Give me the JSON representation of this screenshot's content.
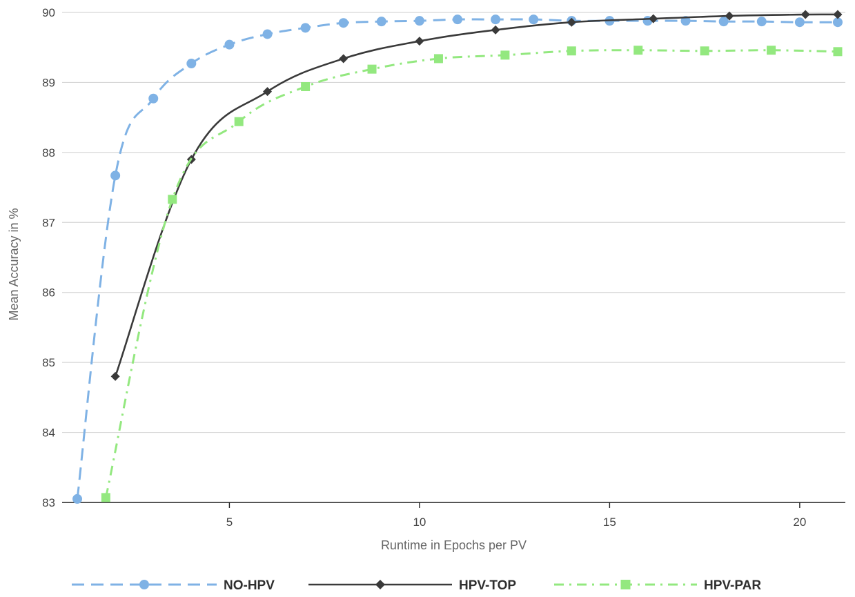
{
  "chart_data": {
    "type": "line",
    "title": "",
    "xlabel": "Runtime in Epochs per PV",
    "ylabel": "Mean Accuracy in %",
    "xlim": [
      0.6,
      21.2
    ],
    "ylim": [
      83,
      90
    ],
    "xticks": [
      5,
      10,
      15,
      20
    ],
    "yticks": [
      83,
      84,
      85,
      86,
      87,
      88,
      89,
      90
    ],
    "grid": "horizontal",
    "legend_position": "bottom",
    "series": [
      {
        "name": "NO-HPV",
        "color": "#7fb2e5",
        "line_style": "dashed",
        "marker": "circle",
        "x": [
          1,
          2,
          3,
          4,
          5,
          6,
          7,
          8,
          9,
          10,
          11,
          12,
          13,
          14,
          15,
          16,
          17,
          18,
          19,
          20,
          21
        ],
        "y": [
          83.05,
          87.67,
          88.77,
          89.27,
          89.54,
          89.69,
          89.78,
          89.85,
          89.87,
          89.88,
          89.9,
          89.9,
          89.9,
          89.88,
          89.88,
          89.88,
          89.88,
          89.87,
          89.87,
          89.86,
          89.86
        ]
      },
      {
        "name": "HPV-TOP",
        "color": "#3a3a3a",
        "line_style": "solid",
        "marker": "diamond",
        "x": [
          2,
          4,
          6,
          8,
          10,
          12,
          14,
          16.15,
          18.15,
          20.15,
          21
        ],
        "y": [
          84.8,
          87.9,
          88.87,
          89.34,
          89.59,
          89.75,
          89.86,
          89.91,
          89.95,
          89.97,
          89.97
        ]
      },
      {
        "name": "HPV-PAR",
        "color": "#93e87f",
        "line_style": "dashdot",
        "marker": "square",
        "x": [
          1.75,
          3.5,
          5.25,
          7,
          8.75,
          10.5,
          12.25,
          14,
          15.75,
          17.5,
          19.25,
          21
        ],
        "y": [
          83.07,
          87.33,
          88.44,
          88.94,
          89.19,
          89.34,
          89.39,
          89.45,
          89.46,
          89.45,
          89.46,
          89.44
        ]
      }
    ]
  }
}
